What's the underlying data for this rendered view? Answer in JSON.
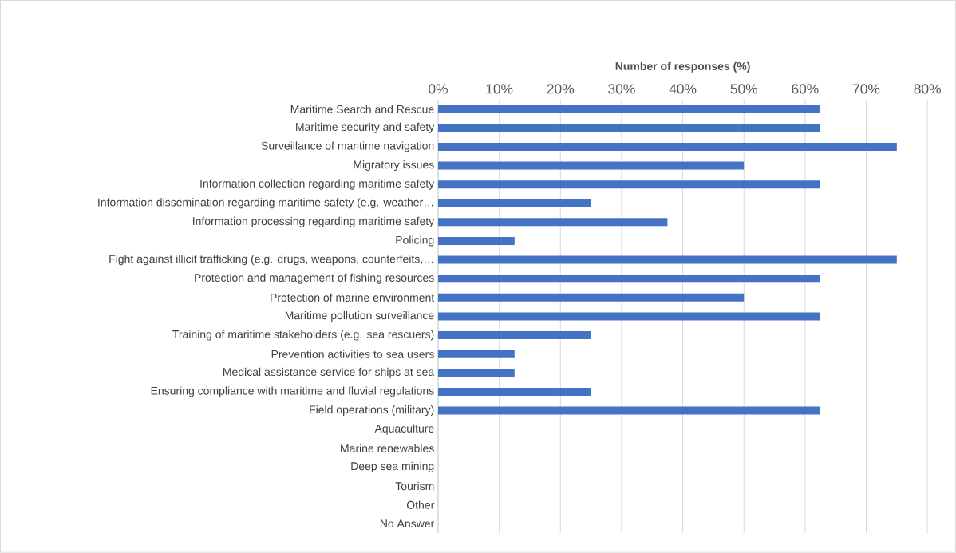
{
  "chart_data": {
    "type": "bar",
    "orientation": "horizontal",
    "xlabel": "Number of responses (%)",
    "categories": [
      "Maritime Search and Rescue",
      "Maritime security and safety",
      "Surveillance of maritime navigation",
      "Migratory issues",
      "Information collection regarding maritime safety",
      "Information dissemination regarding maritime safety (e.g. weather…",
      "Information processing regarding maritime safety",
      "Policing",
      "Fight against illicit trafficking (e.g. drugs, weapons, counterfeits,…",
      "Protection and management of fishing resources",
      "Protection of marine environment",
      "Maritime pollution surveillance",
      "Training of maritime stakeholders (e.g. sea rescuers)",
      "Prevention activities to sea users",
      "Medical assistance service for ships at sea",
      "Ensuring compliance with maritime and fluvial regulations",
      "Field operations (military)",
      "Aquaculture",
      "Marine renewables",
      "Deep sea mining",
      "Tourism",
      "Other",
      "No Answer"
    ],
    "values": [
      62.5,
      62.5,
      75,
      50,
      62.5,
      25,
      37.5,
      12.5,
      75,
      62.5,
      50,
      62.5,
      25,
      12.5,
      12.5,
      25,
      62.5,
      0,
      0,
      0,
      0,
      0,
      0
    ],
    "color": "#4472c4",
    "xlim": [
      0,
      80
    ],
    "xticks": [
      {
        "value": 0,
        "label": "0%"
      },
      {
        "value": 10,
        "label": "10%"
      },
      {
        "value": 20,
        "label": "20%"
      },
      {
        "value": 30,
        "label": "30%"
      },
      {
        "value": 40,
        "label": "40%"
      },
      {
        "value": 50,
        "label": "50%"
      },
      {
        "value": 60,
        "label": "60%"
      },
      {
        "value": 70,
        "label": "70%"
      },
      {
        "value": 80,
        "label": "80%"
      }
    ],
    "grid": "x"
  }
}
